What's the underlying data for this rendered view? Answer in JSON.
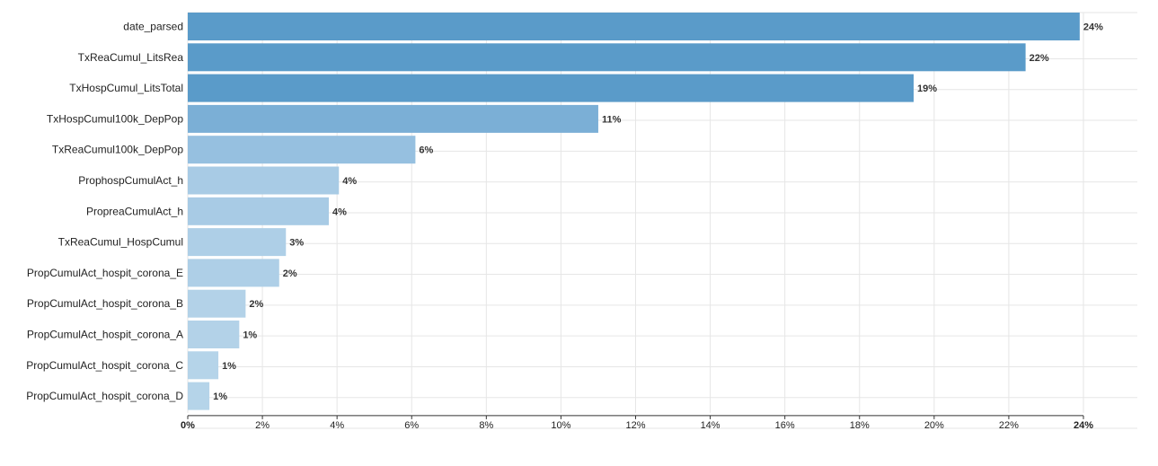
{
  "chart_data": {
    "type": "bar",
    "orientation": "horizontal",
    "categories": [
      "date_parsed",
      "TxReaCumul_LitsRea",
      "TxHospCumul_LitsTotal",
      "TxHospCumul100k_DepPop",
      "TxReaCumul100k_DepPop",
      "ProphospCumulAct_h",
      "PropreaCumulAct_h",
      "TxReaCumul_HospCumul",
      "PropCumulAct_hospit_corona_E",
      "PropCumulAct_hospit_corona_B",
      "PropCumulAct_hospit_corona_A",
      "PropCumulAct_hospit_corona_C",
      "PropCumulAct_hospit_corona_D"
    ],
    "values": [
      0.239,
      0.2245,
      0.1945,
      0.11,
      0.061,
      0.0405,
      0.0378,
      0.0263,
      0.0245,
      0.0155,
      0.0138,
      0.0082,
      0.0058
    ],
    "value_labels": [
      "24%",
      "22%",
      "19%",
      "11%",
      "6%",
      "4%",
      "4%",
      "3%",
      "2%",
      "2%",
      "1%",
      "1%",
      "1%"
    ],
    "bar_colors": [
      "#5a9bc9",
      "#5a9bc9",
      "#5a9bc9",
      "#7bafd6",
      "#96c0e0",
      "#a8cbe5",
      "#a8cbe5",
      "#aecfe7",
      "#aecfe7",
      "#b3d2e8",
      "#b3d2e8",
      "#b5d4e9",
      "#b5d4e9"
    ],
    "xlim": [
      0,
      0.24
    ],
    "x_ticks": [
      0,
      0.02,
      0.04,
      0.06,
      0.08,
      0.1,
      0.12,
      0.14,
      0.16,
      0.18,
      0.2,
      0.22,
      0.24
    ],
    "x_tick_labels": [
      "0%",
      "2%",
      "4%",
      "6%",
      "8%",
      "10%",
      "12%",
      "14%",
      "16%",
      "18%",
      "20%",
      "22%",
      "24%"
    ],
    "grid": true
  }
}
